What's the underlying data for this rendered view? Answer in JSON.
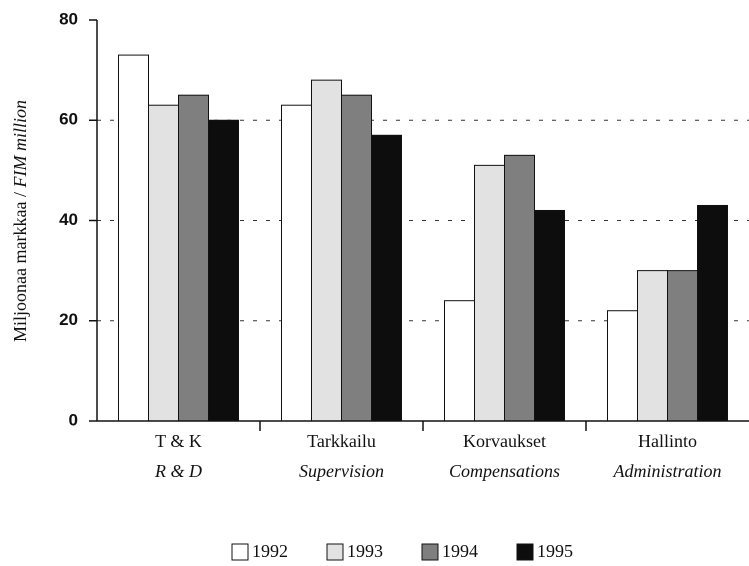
{
  "chart_data": {
    "type": "bar",
    "ylabel": {
      "main": "Miljoonaa markkaa /",
      "italic": "FIM million"
    },
    "categories": [
      "T & K",
      "Tarkkailu",
      "Korvaukset",
      "Hallinto"
    ],
    "category_translations": [
      "R & D",
      "Supervision",
      "Compensations",
      "Administration"
    ],
    "series": [
      {
        "name": "1992",
        "color": "#ffffff",
        "values": [
          73,
          63,
          24,
          22
        ]
      },
      {
        "name": "1993",
        "color": "#e2e2e2",
        "values": [
          63,
          68,
          51,
          30
        ]
      },
      {
        "name": "1994",
        "color": "#7f7f7f",
        "values": [
          65,
          65,
          53,
          30
        ]
      },
      {
        "name": "1995",
        "color": "#0d0d0d",
        "values": [
          60,
          57,
          42,
          43
        ]
      }
    ],
    "ylim": [
      0,
      80
    ],
    "yticks": [
      0,
      20,
      40,
      60,
      80
    ],
    "grid": true
  }
}
